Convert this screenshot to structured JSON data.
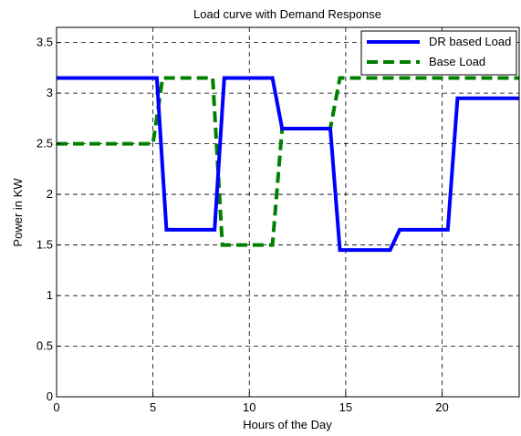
{
  "chart_data": {
    "type": "line",
    "title": "Load curve with Demand Response",
    "xlabel": "Hours of the Day",
    "ylabel": "Power in KW",
    "xlim": [
      0,
      24
    ],
    "ylim": [
      0,
      3.65
    ],
    "xticks": [
      0,
      5,
      10,
      15,
      20
    ],
    "yticks": [
      0,
      0.5,
      1,
      1.5,
      2,
      2.5,
      3,
      3.5
    ],
    "ytick_labels": [
      "0",
      "0.5",
      "1",
      "1.5",
      "2",
      "2.5",
      "3",
      "3.5"
    ],
    "grid": true,
    "legend_position": "top-right",
    "series": [
      {
        "name": "DR based Load",
        "color": "#0000ff",
        "style": "solid",
        "x": [
          0,
          5.2,
          5.7,
          8.2,
          8.7,
          11.2,
          11.7,
          14.2,
          14.7,
          17.3,
          17.8,
          20.3,
          20.8,
          24
        ],
        "y": [
          3.15,
          3.15,
          1.65,
          1.65,
          3.15,
          3.15,
          2.65,
          2.65,
          1.45,
          1.45,
          1.65,
          1.65,
          2.95,
          2.95
        ]
      },
      {
        "name": "Base Load",
        "color": "#008000",
        "style": "dashed",
        "x": [
          0,
          5.0,
          5.5,
          8.1,
          8.6,
          11.2,
          11.7,
          14.2,
          14.7,
          24
        ],
        "y": [
          2.5,
          2.5,
          3.15,
          3.15,
          1.5,
          1.5,
          2.65,
          2.65,
          3.15,
          3.15
        ]
      }
    ]
  }
}
